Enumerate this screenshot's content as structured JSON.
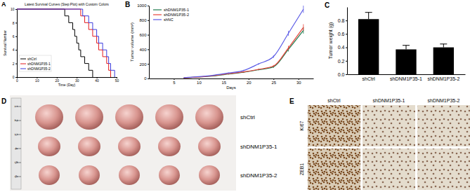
{
  "chart_data": [
    {
      "panel": "A",
      "type": "step",
      "title": "Latest Survival Curves (Step Plot) with Custom Colors",
      "x_label": "Time (Day)",
      "y_label": "Survival Number",
      "xlim": [
        0,
        50
      ],
      "xticks": [
        0,
        10,
        20,
        30,
        40,
        50
      ],
      "ylim": [
        0,
        10
      ],
      "yticks": [
        0,
        2,
        4,
        6,
        8,
        10
      ],
      "legend": "lower left",
      "series": [
        {
          "name": "shCtrl",
          "color": "#000000",
          "x": [
            0,
            24,
            26,
            28,
            29,
            30,
            31,
            32,
            34,
            36,
            38
          ],
          "values": [
            10,
            9,
            8,
            7,
            6,
            5,
            4,
            3,
            2,
            1,
            0
          ]
        },
        {
          "name": "shDNM1P35-1",
          "color": "#e41a1c",
          "x": [
            0,
            32,
            34,
            36,
            38,
            40,
            41,
            43,
            45,
            46,
            47
          ],
          "values": [
            10,
            9,
            8,
            7,
            6,
            5,
            4,
            3,
            2,
            1,
            0
          ]
        },
        {
          "name": "shDNM1P35-2",
          "color": "#3b3bdd",
          "x": [
            0,
            33,
            36,
            38,
            40,
            41,
            43,
            45,
            46,
            47,
            49
          ],
          "values": [
            10,
            9,
            8,
            7,
            6,
            5,
            4,
            3,
            2,
            1,
            0
          ]
        }
      ]
    },
    {
      "panel": "B",
      "type": "line",
      "x_label": "Days",
      "y_label": "Tumor volume (mm³)",
      "xlim": [
        0,
        33
      ],
      "xticks": [
        5,
        10,
        15,
        20,
        25,
        30
      ],
      "ylim": [
        0,
        1000
      ],
      "yticks": [
        0,
        200,
        400,
        600,
        800,
        1000
      ],
      "legend": "upper left",
      "x": [
        7,
        10,
        13,
        16,
        19,
        22,
        25,
        28,
        31
      ],
      "series": [
        {
          "name": "shDNM1P35-1",
          "color": "#1f7a4d",
          "values": [
            8,
            20,
            35,
            60,
            85,
            120,
            160,
            400,
            660
          ],
          "errors": [
            2,
            3,
            4,
            6,
            8,
            10,
            15,
            30,
            45
          ]
        },
        {
          "name": "shDNM1P35-2",
          "color": "#e8433a",
          "values": [
            8,
            20,
            40,
            65,
            90,
            125,
            170,
            420,
            700
          ],
          "errors": [
            2,
            3,
            4,
            6,
            8,
            10,
            15,
            30,
            45
          ]
        },
        {
          "name": "shNC",
          "color": "#5b5be6",
          "values": [
            10,
            25,
            45,
            75,
            110,
            200,
            300,
            620,
            950
          ],
          "errors": [
            2,
            3,
            4,
            6,
            8,
            12,
            18,
            35,
            50
          ]
        }
      ]
    },
    {
      "panel": "C",
      "type": "bar",
      "y_label": "Tumor weight (g)",
      "categories": [
        "shCtrl",
        "shDNM1P35-1",
        "shDNM1P35-2"
      ],
      "values": [
        0.82,
        0.37,
        0.4
      ],
      "errors": [
        0.1,
        0.06,
        0.05
      ],
      "color": "#000000",
      "ylim": [
        0,
        1.0
      ],
      "yticks": [
        {
          "value": 0,
          "label": "0.0"
        },
        0.2,
        0.4,
        0.6,
        0.8
      ]
    }
  ],
  "panels": [
    {
      "label": "D",
      "type": "photo",
      "rows": [
        "shCtrl",
        "shDNM1P35-1",
        "shDNM1P35-2"
      ],
      "tumors_per_row": 5,
      "ruler": [
        1,
        2,
        3,
        4,
        5,
        6
      ]
    },
    {
      "label": "E",
      "type": "ihc",
      "columns": [
        "shCtrl",
        "shDNM1P35-1",
        "shDNM1P35-2"
      ],
      "rows": [
        "Ki67",
        "ZEB1"
      ]
    }
  ]
}
